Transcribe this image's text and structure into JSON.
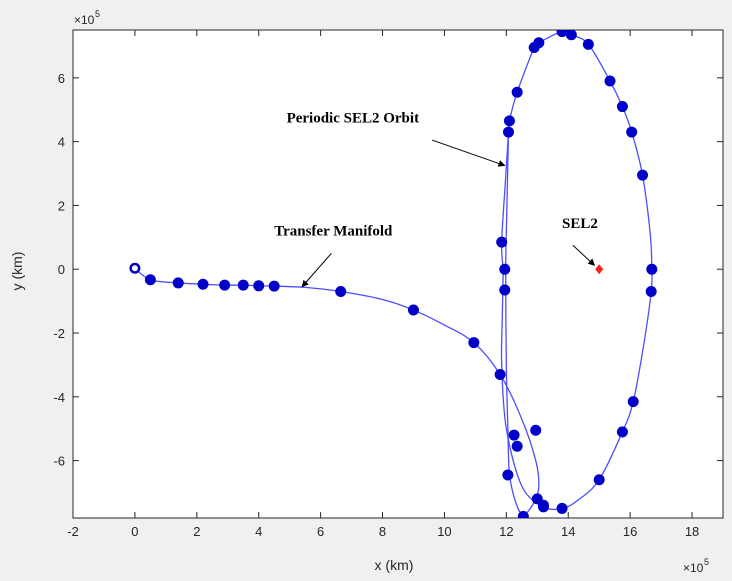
{
  "chart_data": {
    "type": "line",
    "xlabel": "x (km)",
    "ylabel": "y (km)",
    "x_exponent": "×10",
    "x_exponent_power": "5",
    "y_exponent": "×10",
    "y_exponent_power": "5",
    "xlim": [
      -2,
      19
    ],
    "ylim": [
      -7.8,
      7.5
    ],
    "xticks": [
      -2,
      0,
      2,
      4,
      6,
      8,
      10,
      12,
      14,
      16,
      18
    ],
    "yticks": [
      -6,
      -4,
      -2,
      0,
      2,
      4,
      6
    ],
    "line_color": "#4d4dff",
    "marker_color": "#0000c8",
    "point_color": "#ff2020",
    "series": [
      {
        "role": "periodic-orbit",
        "points": [
          [
            11.9,
            0
          ],
          [
            11.85,
            0.85
          ],
          [
            11.98,
            2.9
          ],
          [
            12.07,
            4.3
          ],
          [
            12.1,
            4.65
          ],
          [
            12.35,
            5.55
          ],
          [
            12.9,
            6.95
          ],
          [
            13.05,
            7.1
          ],
          [
            13.8,
            7.45
          ],
          [
            14.1,
            7.35
          ],
          [
            14.65,
            7.05
          ],
          [
            15.35,
            5.9
          ],
          [
            15.75,
            5.1
          ],
          [
            16.05,
            4.3
          ],
          [
            16.4,
            2.95
          ],
          [
            16.65,
            1.1
          ],
          [
            16.7,
            0
          ],
          [
            16.68,
            -0.7
          ],
          [
            16.45,
            -2.3
          ],
          [
            16.1,
            -4.15
          ],
          [
            15.75,
            -5.1
          ],
          [
            15.0,
            -6.6
          ],
          [
            14.3,
            -7.25
          ],
          [
            13.8,
            -7.5
          ],
          [
            13.2,
            -7.45
          ],
          [
            12.5,
            -6.8
          ],
          [
            12.0,
            -5.0
          ],
          [
            11.85,
            -3.0
          ],
          [
            11.87,
            -1.5
          ],
          [
            11.9,
            0
          ]
        ],
        "markers": [
          [
            12.07,
            4.3
          ],
          [
            12.1,
            4.65
          ],
          [
            12.35,
            5.55
          ],
          [
            12.9,
            6.95
          ],
          [
            13.05,
            7.1
          ],
          [
            13.8,
            7.45
          ],
          [
            14.1,
            7.35
          ],
          [
            14.65,
            7.05
          ],
          [
            15.35,
            5.9
          ],
          [
            15.75,
            5.1
          ],
          [
            16.05,
            4.3
          ],
          [
            16.4,
            2.95
          ],
          [
            16.7,
            0
          ],
          [
            16.68,
            -0.7
          ],
          [
            16.1,
            -4.15
          ],
          [
            15.75,
            -5.1
          ],
          [
            15.0,
            -6.6
          ],
          [
            13.8,
            -7.5
          ],
          [
            13.2,
            -7.45
          ],
          [
            11.85,
            0.85
          ],
          [
            11.95,
            0
          ],
          [
            11.95,
            -0.65
          ],
          [
            12.05,
            -6.45
          ]
        ]
      },
      {
        "role": "transfer-manifold",
        "points": [
          [
            0,
            0.03
          ],
          [
            0.5,
            -0.33
          ],
          [
            1.4,
            -0.43
          ],
          [
            2.2,
            -0.47
          ],
          [
            2.9,
            -0.5
          ],
          [
            3.5,
            -0.5
          ],
          [
            4.0,
            -0.52
          ],
          [
            4.5,
            -0.53
          ],
          [
            5.5,
            -0.57
          ],
          [
            6.65,
            -0.7
          ],
          [
            8.0,
            -0.95
          ],
          [
            9.0,
            -1.28
          ],
          [
            10.0,
            -1.75
          ],
          [
            10.95,
            -2.3
          ],
          [
            11.8,
            -3.3
          ],
          [
            12.5,
            -4.7
          ],
          [
            12.95,
            -6.0
          ],
          [
            13.05,
            -6.8
          ],
          [
            12.9,
            -7.3
          ],
          [
            12.55,
            -7.7
          ],
          [
            12.3,
            -7.3
          ],
          [
            12.1,
            -6.4
          ],
          [
            12.05,
            -5.0
          ],
          [
            12.0,
            -3.0
          ],
          [
            11.98,
            0
          ],
          [
            12.02,
            2.0
          ],
          [
            12.07,
            4.3
          ]
        ],
        "markers": [
          [
            0,
            0.03
          ],
          [
            0.5,
            -0.33
          ],
          [
            1.4,
            -0.43
          ],
          [
            2.2,
            -0.47
          ],
          [
            2.9,
            -0.5
          ],
          [
            3.5,
            -0.5
          ],
          [
            4.0,
            -0.52
          ],
          [
            4.5,
            -0.53
          ],
          [
            6.65,
            -0.7
          ],
          [
            9.0,
            -1.28
          ],
          [
            10.95,
            -2.3
          ],
          [
            11.8,
            -3.3
          ],
          [
            12.95,
            -5.05
          ],
          [
            12.25,
            -5.2
          ],
          [
            12.35,
            -5.55
          ],
          [
            13.0,
            -7.2
          ],
          [
            13.2,
            -7.4
          ],
          [
            12.55,
            -7.75
          ]
        ]
      }
    ],
    "special_point": {
      "label": "SEL2",
      "x": 15.0,
      "y": 0
    },
    "annotations": [
      {
        "text": "Periodic SEL2 Orbit",
        "text_x": 4.9,
        "text_y": 4.6,
        "arrow_from": [
          9.6,
          4.05
        ],
        "arrow_to": [
          11.95,
          3.25
        ]
      },
      {
        "text": "Transfer Manifold",
        "text_x": 4.5,
        "text_y": 1.05,
        "arrow_from": [
          6.35,
          0.5
        ],
        "arrow_to": [
          5.4,
          -0.55
        ]
      },
      {
        "text": "SEL2",
        "text_x": 13.8,
        "text_y": 1.3,
        "arrow_from": [
          14.15,
          0.75
        ],
        "arrow_to": [
          14.85,
          0.12
        ]
      }
    ]
  }
}
